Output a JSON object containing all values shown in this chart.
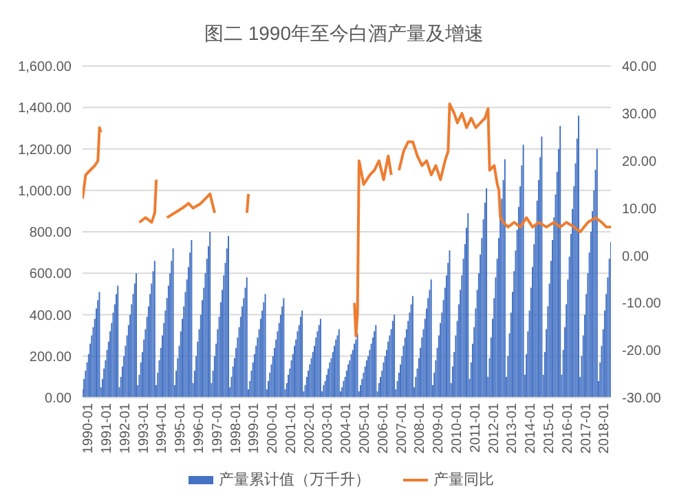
{
  "chart_data": {
    "type": "bar",
    "title": "图二 1990年至今白酒产量及增速",
    "x": [
      "1990-01",
      "1990-02",
      "1990-03",
      "1990-04",
      "1990-05",
      "1990-06",
      "1990-07",
      "1990-08",
      "1990-09",
      "1990-10",
      "1990-11",
      "1990-12",
      "1991-01",
      "1991-02",
      "1991-03",
      "1991-04",
      "1991-05",
      "1991-06",
      "1991-07",
      "1991-08",
      "1991-09",
      "1991-10",
      "1991-11",
      "1991-12",
      "1992-01",
      "1992-02",
      "1992-03",
      "1992-04",
      "1992-05",
      "1992-06",
      "1992-07",
      "1992-08",
      "1992-09",
      "1992-10",
      "1992-11",
      "1992-12",
      "1993-01",
      "1993-02",
      "1993-03",
      "1993-04",
      "1993-05",
      "1993-06",
      "1993-07",
      "1993-08",
      "1993-09",
      "1993-10",
      "1993-11",
      "1993-12",
      "1994-01",
      "1994-02",
      "1994-03",
      "1994-04",
      "1994-05",
      "1994-06",
      "1994-07",
      "1994-08",
      "1994-09",
      "1994-10",
      "1994-11",
      "1994-12",
      "1995-01",
      "1995-02",
      "1995-03",
      "1995-04",
      "1995-05",
      "1995-06",
      "1995-07",
      "1995-08",
      "1995-09",
      "1995-10",
      "1995-11",
      "1995-12",
      "1996-01",
      "1996-02",
      "1996-03",
      "1996-04",
      "1996-05",
      "1996-06",
      "1996-07",
      "1996-08",
      "1996-09",
      "1996-10",
      "1996-11",
      "1996-12",
      "1997-01",
      "1997-02",
      "1997-03",
      "1997-04",
      "1997-05",
      "1997-06",
      "1997-07",
      "1997-08",
      "1997-09",
      "1997-10",
      "1997-11",
      "1997-12",
      "1998-01",
      "1998-02",
      "1998-03",
      "1998-04",
      "1998-05",
      "1998-06",
      "1998-07",
      "1998-08",
      "1998-09",
      "1998-10",
      "1998-11",
      "1998-12",
      "1999-01",
      "1999-02",
      "1999-03",
      "1999-04",
      "1999-05",
      "1999-06",
      "1999-07",
      "1999-08",
      "1999-09",
      "1999-10",
      "1999-11",
      "1999-12",
      "2000-01",
      "2000-02",
      "2000-03",
      "2000-04",
      "2000-05",
      "2000-06",
      "2000-07",
      "2000-08",
      "2000-09",
      "2000-10",
      "2000-11",
      "2000-12",
      "2001-01",
      "2001-02",
      "2001-03",
      "2001-04",
      "2001-05",
      "2001-06",
      "2001-07",
      "2001-08",
      "2001-09",
      "2001-10",
      "2001-11",
      "2001-12",
      "2002-01",
      "2002-02",
      "2002-03",
      "2002-04",
      "2002-05",
      "2002-06",
      "2002-07",
      "2002-08",
      "2002-09",
      "2002-10",
      "2002-11",
      "2002-12",
      "2003-01",
      "2003-02",
      "2003-03",
      "2003-04",
      "2003-05",
      "2003-06",
      "2003-07",
      "2003-08",
      "2003-09",
      "2003-10",
      "2003-11",
      "2003-12",
      "2004-01",
      "2004-02",
      "2004-03",
      "2004-04",
      "2004-05",
      "2004-06",
      "2004-07",
      "2004-08",
      "2004-09",
      "2004-10",
      "2004-11",
      "2004-12",
      "2005-01",
      "2005-02",
      "2005-03",
      "2005-04",
      "2005-05",
      "2005-06",
      "2005-07",
      "2005-08",
      "2005-09",
      "2005-10",
      "2005-11",
      "2005-12",
      "2006-01",
      "2006-02",
      "2006-03",
      "2006-04",
      "2006-05",
      "2006-06",
      "2006-07",
      "2006-08",
      "2006-09",
      "2006-10",
      "2006-11",
      "2006-12",
      "2007-01",
      "2007-02",
      "2007-03",
      "2007-04",
      "2007-05",
      "2007-06",
      "2007-07",
      "2007-08",
      "2007-09",
      "2007-10",
      "2007-11",
      "2007-12",
      "2008-01",
      "2008-02",
      "2008-03",
      "2008-04",
      "2008-05",
      "2008-06",
      "2008-07",
      "2008-08",
      "2008-09",
      "2008-10",
      "2008-11",
      "2008-12",
      "2009-01",
      "2009-02",
      "2009-03",
      "2009-04",
      "2009-05",
      "2009-06",
      "2009-07",
      "2009-08",
      "2009-09",
      "2009-10",
      "2009-11",
      "2009-12",
      "2010-01",
      "2010-02",
      "2010-03",
      "2010-04",
      "2010-05",
      "2010-06",
      "2010-07",
      "2010-08",
      "2010-09",
      "2010-10",
      "2010-11",
      "2010-12",
      "2011-01",
      "2011-02",
      "2011-03",
      "2011-04",
      "2011-05",
      "2011-06",
      "2011-07",
      "2011-08",
      "2011-09",
      "2011-10",
      "2011-11",
      "2011-12",
      "2012-01",
      "2012-02",
      "2012-03",
      "2012-04",
      "2012-05",
      "2012-06",
      "2012-07",
      "2012-08",
      "2012-09",
      "2012-10",
      "2012-11",
      "2012-12",
      "2013-01",
      "2013-02",
      "2013-03",
      "2013-04",
      "2013-05",
      "2013-06",
      "2013-07",
      "2013-08",
      "2013-09",
      "2013-10",
      "2013-11",
      "2013-12",
      "2014-01",
      "2014-02",
      "2014-03",
      "2014-04",
      "2014-05",
      "2014-06",
      "2014-07",
      "2014-08",
      "2014-09",
      "2014-10",
      "2014-11",
      "2014-12",
      "2015-01",
      "2015-02",
      "2015-03",
      "2015-04",
      "2015-05",
      "2015-06",
      "2015-07",
      "2015-08",
      "2015-09",
      "2015-10",
      "2015-11",
      "2015-12",
      "2016-01",
      "2016-02",
      "2016-03",
      "2016-04",
      "2016-05",
      "2016-06",
      "2016-07",
      "2016-08",
      "2016-09",
      "2016-10",
      "2016-11",
      "2016-12",
      "2017-01",
      "2017-02",
      "2017-03",
      "2017-04",
      "2017-05",
      "2017-06",
      "2017-07",
      "2017-08",
      "2017-09",
      "2017-10",
      "2017-11",
      "2017-12",
      "2018-01",
      "2018-02",
      "2018-03",
      "2018-04",
      "2018-05",
      "2018-06",
      "2018-07",
      "2018-08",
      "2018-09"
    ],
    "series": [
      {
        "name": "产量累计值（万千升）",
        "color": "#4472c4",
        "values": [
          40,
          90,
          130,
          170,
          210,
          260,
          300,
          340,
          380,
          430,
          470,
          510,
          50,
          90,
          140,
          180,
          230,
          270,
          320,
          360,
          410,
          450,
          500,
          540,
          50,
          100,
          150,
          200,
          250,
          300,
          350,
          400,
          450,
          500,
          550,
          600,
          60,
          110,
          170,
          220,
          280,
          330,
          390,
          440,
          500,
          550,
          610,
          660,
          60,
          120,
          180,
          240,
          300,
          360,
          420,
          480,
          540,
          600,
          660,
          720,
          60,
          130,
          190,
          250,
          320,
          380,
          440,
          510,
          570,
          630,
          700,
          760,
          70,
          130,
          200,
          270,
          330,
          400,
          470,
          530,
          600,
          670,
          730,
          800,
          70,
          130,
          200,
          260,
          330,
          390,
          460,
          520,
          590,
          650,
          720,
          780,
          50,
          100,
          150,
          190,
          240,
          290,
          340,
          390,
          440,
          480,
          530,
          580,
          40,
          80,
          130,
          170,
          210,
          250,
          290,
          330,
          380,
          420,
          460,
          500,
          40,
          80,
          120,
          160,
          200,
          240,
          280,
          320,
          360,
          400,
          440,
          480,
          40,
          70,
          110,
          140,
          180,
          210,
          250,
          280,
          320,
          350,
          390,
          420,
          30,
          60,
          100,
          130,
          160,
          190,
          220,
          250,
          290,
          320,
          350,
          380,
          30,
          60,
          80,
          110,
          140,
          170,
          190,
          220,
          250,
          280,
          300,
          330,
          30,
          50,
          80,
          100,
          130,
          160,
          180,
          210,
          230,
          260,
          280,
          310,
          30,
          60,
          90,
          120,
          150,
          180,
          200,
          230,
          260,
          290,
          320,
          350,
          30,
          70,
          100,
          130,
          170,
          200,
          230,
          270,
          300,
          330,
          370,
          400,
          40,
          80,
          120,
          160,
          200,
          250,
          290,
          330,
          370,
          410,
          450,
          490,
          50,
          100,
          140,
          190,
          240,
          290,
          330,
          380,
          430,
          480,
          520,
          570,
          60,
          120,
          180,
          240,
          300,
          360,
          410,
          470,
          530,
          590,
          650,
          710,
          70,
          150,
          220,
          300,
          370,
          450,
          520,
          590,
          670,
          740,
          820,
          890,
          90,
          170,
          260,
          340,
          430,
          520,
          600,
          690,
          770,
          860,
          940,
          1010,
          100,
          190,
          290,
          380,
          480,
          580,
          670,
          770,
          860,
          960,
          1050,
          1150,
          100,
          200,
          310,
          410,
          510,
          610,
          710,
          810,
          920,
          1020,
          1120,
          1220,
          110,
          210,
          320,
          420,
          530,
          630,
          740,
          840,
          950,
          1050,
          1160,
          1260,
          110,
          220,
          330,
          440,
          550,
          660,
          760,
          870,
          980,
          1090,
          1200,
          1310,
          110,
          230,
          340,
          450,
          570,
          680,
          790,
          910,
          1020,
          1130,
          1250,
          1360,
          100,
          200,
          300,
          400,
          500,
          600,
          700,
          800,
          900,
          1000,
          1100,
          1200,
          80,
          170,
          250,
          330,
          420,
          500,
          580,
          670,
          750
        ]
      },
      {
        "name": "产量同比",
        "type": "line",
        "axis": "y2",
        "color": "#ed7d31",
        "x": [
          "1990-01",
          "1990-03",
          "1990-06",
          "1990-09",
          "1990-11",
          "1990-12",
          "1991-01",
          "1991-02",
          "1993-02",
          "1993-06",
          "1993-10",
          "1993-12",
          "1994-01",
          "1994-02",
          "1994-08",
          "1995-01",
          "1995-06",
          "1995-10",
          "1996-01",
          "1996-06",
          "1996-12",
          "1997-03",
          "1997-06",
          "1998-12",
          "1999-01",
          "1999-03",
          "2004-10",
          "2004-11",
          "2004-12",
          "2005-01",
          "2005-04",
          "2005-08",
          "2005-11",
          "2006-02",
          "2006-05",
          "2006-08",
          "2006-10",
          "2006-12",
          "2007-03",
          "2007-06",
          "2007-09",
          "2007-12",
          "2008-03",
          "2008-06",
          "2008-09",
          "2008-12",
          "2009-03",
          "2009-06",
          "2009-09",
          "2009-11",
          "2009-12",
          "2010-03",
          "2010-05",
          "2010-08",
          "2010-11",
          "2011-02",
          "2011-05",
          "2011-08",
          "2011-11",
          "2012-01",
          "2012-02",
          "2012-05",
          "2012-07",
          "2012-08",
          "2012-09",
          "2012-11",
          "2013-02",
          "2013-06",
          "2013-10",
          "2014-02",
          "2014-06",
          "2014-10",
          "2015-03",
          "2015-08",
          "2015-12",
          "2016-04",
          "2016-09",
          "2017-01",
          "2017-06",
          "2017-11",
          "2018-03",
          "2018-06",
          "2018-09"
        ],
        "values": [
          12,
          17,
          18,
          19,
          20,
          27,
          26,
          null,
          7,
          8,
          7,
          9,
          16,
          null,
          8,
          9,
          10,
          11,
          10,
          11,
          13,
          9,
          null,
          9,
          13,
          null,
          -10,
          -17,
          -12,
          20,
          15,
          17,
          18,
          20,
          16,
          21,
          17,
          null,
          18,
          22,
          24,
          24,
          21,
          19,
          20,
          17,
          19,
          16,
          20,
          22,
          32,
          30,
          28,
          30,
          27,
          29,
          27,
          28,
          29,
          31,
          18,
          19,
          15,
          14,
          8,
          7,
          6,
          7,
          6,
          8,
          6,
          7,
          6,
          7,
          6,
          7,
          6,
          5,
          7,
          8,
          7,
          6,
          6
        ]
      }
    ],
    "xlim": [
      "1990-01",
      "2018-09"
    ],
    "xticks": [
      "1990-01",
      "1991-01",
      "1992-01",
      "1993-01",
      "1994-01",
      "1995-01",
      "1996-01",
      "1997-01",
      "1998-01",
      "1999-01",
      "2000-01",
      "2001-01",
      "2002-01",
      "2003-01",
      "2004-01",
      "2005-01",
      "2006-01",
      "2007-01",
      "2008-01",
      "2009-01",
      "2010-01",
      "2011-01",
      "2012-01",
      "2013-01",
      "2014-01",
      "2015-01",
      "2016-01",
      "2017-01",
      "2018-01"
    ],
    "ylim": [
      0,
      1600
    ],
    "yticks": [
      {
        "value": 0,
        "label": "0.00"
      },
      {
        "value": 200,
        "label": "200.00"
      },
      {
        "value": 400,
        "label": "400.00"
      },
      {
        "value": 600,
        "label": "600.00"
      },
      {
        "value": 800,
        "label": "800.00"
      },
      {
        "value": 1000,
        "label": "1,000.00"
      },
      {
        "value": 1200,
        "label": "1,200.00"
      },
      {
        "value": 1400,
        "label": "1,400.00"
      },
      {
        "value": 1600,
        "label": "1,600.00"
      }
    ],
    "y2lim": [
      -30,
      40
    ],
    "y2ticks": [
      {
        "value": -30,
        "label": "-30.00"
      },
      {
        "value": -20,
        "label": "-20.00"
      },
      {
        "value": -10,
        "label": "-10.00"
      },
      {
        "value": 0,
        "label": "0.00"
      },
      {
        "value": 10,
        "label": "10.00"
      },
      {
        "value": 20,
        "label": "20.00"
      },
      {
        "value": 30,
        "label": "30.00"
      },
      {
        "value": 40,
        "label": "40.00"
      }
    ],
    "grid": "y",
    "legend": "bottom",
    "marker": "none",
    "line_style": "solid"
  }
}
